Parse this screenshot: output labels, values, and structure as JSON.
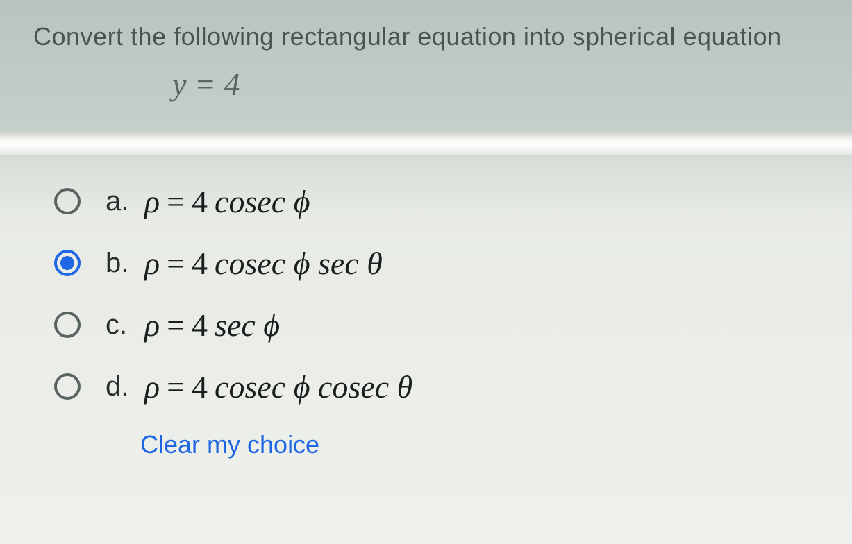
{
  "question": {
    "prompt": "Convert the following rectangular equation into spherical equation",
    "given_equation": "y = 4"
  },
  "options": [
    {
      "letter": "a.",
      "rho": "ρ",
      "equals": "=",
      "coef": "4",
      "terms": "cosec ϕ",
      "selected": false
    },
    {
      "letter": "b.",
      "rho": "ρ",
      "equals": "=",
      "coef": "4",
      "terms": "cosec ϕ sec θ",
      "selected": true
    },
    {
      "letter": "c.",
      "rho": "ρ",
      "equals": "=",
      "coef": "4",
      "terms": "sec ϕ",
      "selected": false
    },
    {
      "letter": "d.",
      "rho": "ρ",
      "equals": "=",
      "coef": "4",
      "terms": "cosec ϕ cosec θ",
      "selected": false
    }
  ],
  "clear_label": "Clear my choice",
  "colors": {
    "accent": "#1f66e5",
    "text_primary": "#1a1f1d",
    "text_muted": "#4a5552"
  }
}
